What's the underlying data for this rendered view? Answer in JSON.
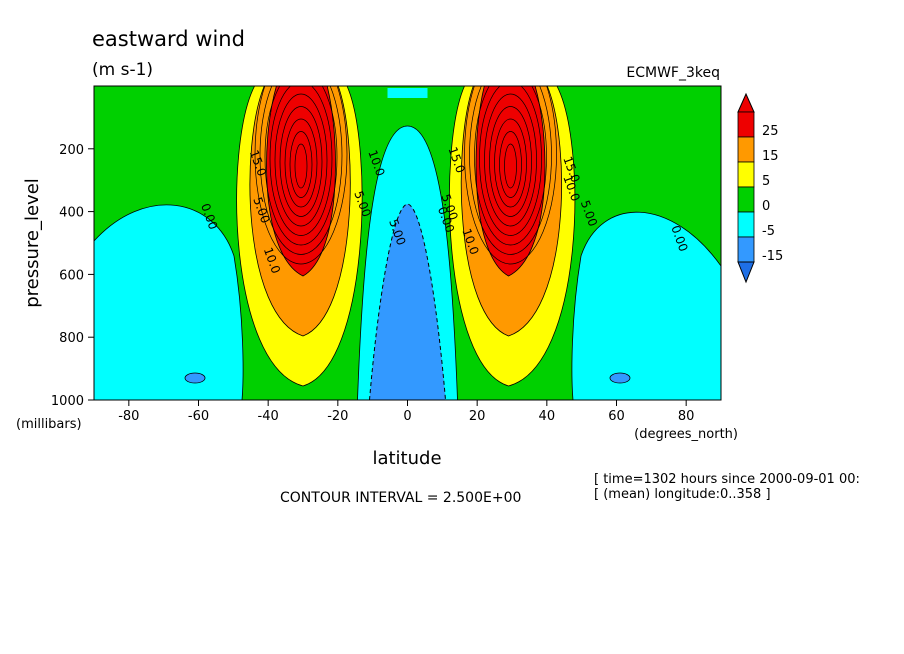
{
  "chart_data": {
    "type": "heatmap",
    "title": "eastward wind",
    "units": "(m s-1)",
    "dataset": "ECMWF_3keq",
    "xlabel": "latitude",
    "ylabel": "pressure_level",
    "x_units": "(degrees_north)",
    "y_units": "(millibars)",
    "xlim": [
      -90,
      90
    ],
    "ylim": [
      1000,
      0
    ],
    "x_ticks": [
      -80,
      -60,
      -40,
      -20,
      0,
      20,
      40,
      60,
      80
    ],
    "x_tick_labels": [
      "-80",
      "-60",
      "-40",
      "-20",
      "0",
      "20",
      "40",
      "60",
      "80"
    ],
    "y_ticks": [
      200,
      400,
      600,
      800,
      1000
    ],
    "y_tick_labels": [
      "200",
      "400",
      "600",
      "800",
      "1000"
    ],
    "contour_interval_text": "CONTOUR INTERVAL = 2.500E+00",
    "time_text": "[ time=1302 hours since 2000-09-01 00:",
    "longitude_text": "[ (mean) longitude:0..358 ]",
    "colorbar": {
      "levels": [
        -15,
        -5,
        0,
        5,
        15,
        25
      ],
      "labels": [
        "25",
        "15",
        "5",
        "0",
        "-5",
        "-15"
      ],
      "colors": {
        "c_low": "#1e6fe6",
        "c_neg_strong": "#3399ff",
        "c_neg": "#00ffff",
        "c_zero": "#00d000",
        "c_pos": "#ffff00",
        "c_mid": "#ff9900",
        "c_high": "#ee0000"
      }
    },
    "jets": [
      {
        "name": "southern jet core",
        "lat": -30,
        "pressure": 200,
        "max_speed": 40
      },
      {
        "name": "northern jet core",
        "lat": 29,
        "pressure": 200,
        "max_speed": 40
      }
    ],
    "easterly_regions": [
      {
        "name": "equatorial easterlies",
        "lat": 0,
        "pressure": 800,
        "min_speed": -10
      },
      {
        "name": "southern polar easterlies",
        "lat": -62,
        "pressure": 700,
        "min_speed": -7
      },
      {
        "name": "northern polar easterlies",
        "lat": 62,
        "pressure": 700,
        "min_speed": -7
      }
    ],
    "contour_labels": [
      {
        "text": "15.0",
        "lat": -44,
        "pressure": 250
      },
      {
        "text": "5.00",
        "lat": -43,
        "pressure": 400
      },
      {
        "text": "10.0",
        "lat": -40,
        "pressure": 560
      },
      {
        "text": "0.00",
        "lat": -58,
        "pressure": 420
      },
      {
        "text": "5.00",
        "lat": -14,
        "pressure": 380
      },
      {
        "text": "10.0",
        "lat": -10,
        "pressure": 250
      },
      {
        "text": "5.00",
        "lat": -4,
        "pressure": 470
      },
      {
        "text": "0.00",
        "lat": 10,
        "pressure": 430
      },
      {
        "text": "5.00",
        "lat": 11,
        "pressure": 390
      },
      {
        "text": "10.0",
        "lat": 17,
        "pressure": 500
      },
      {
        "text": "15.0",
        "lat": 13,
        "pressure": 240
      },
      {
        "text": "15.0",
        "lat": 46,
        "pressure": 270
      },
      {
        "text": "10.0",
        "lat": 46,
        "pressure": 330
      },
      {
        "text": "5.00",
        "lat": 51,
        "pressure": 410
      },
      {
        "text": "0.00",
        "lat": 77,
        "pressure": 490
      }
    ]
  }
}
